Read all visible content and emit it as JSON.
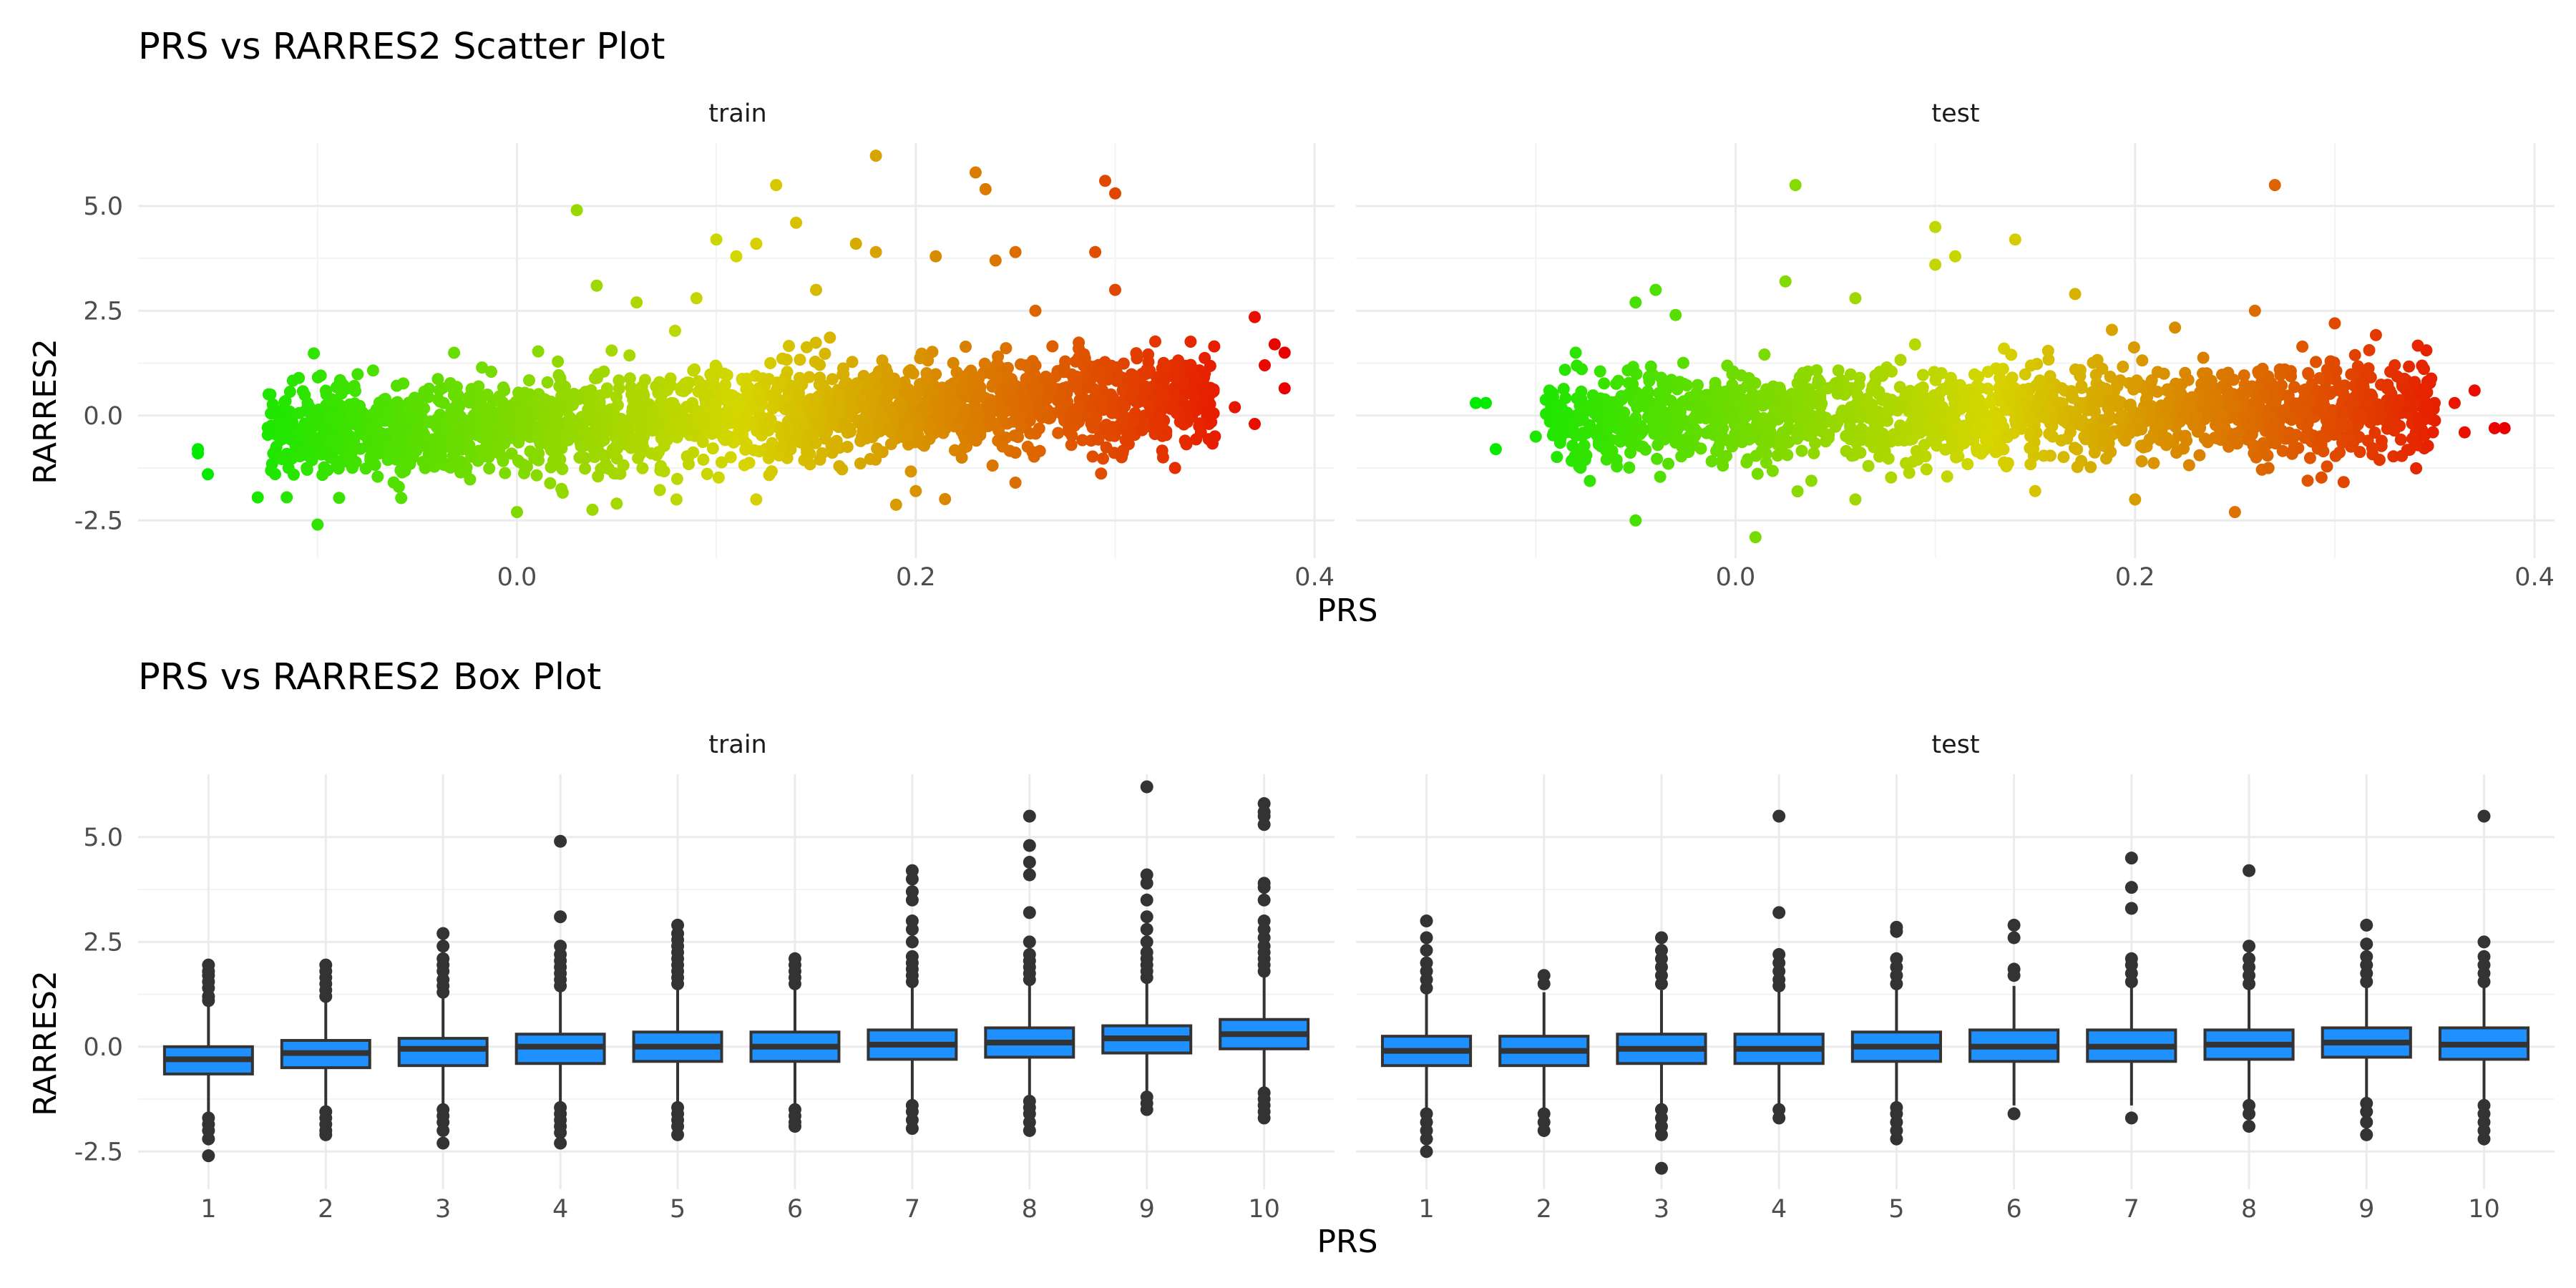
{
  "chart_data": [
    {
      "type": "scatter",
      "title": "PRS vs RARRES2 Scatter Plot",
      "xlabel": "PRS",
      "ylabel": "RARRES2",
      "xlim": [
        -0.19,
        0.41
      ],
      "ylim": [
        -3.4,
        6.5
      ],
      "x_ticks": [
        "0.0",
        "0.2",
        "0.4"
      ],
      "y_ticks": [
        "-2.5",
        "0.0",
        "2.5",
        "5.0"
      ],
      "color_gradient": [
        "#00ff00",
        "#ff0000"
      ],
      "grid": true,
      "panels": [
        {
          "label": "train",
          "x_range": [
            -0.16,
            0.385
          ],
          "cloud": {
            "mean_slope": 2.0,
            "spread": 0.55,
            "n": 2200
          },
          "points": [
            [
              -0.16,
              -0.9
            ],
            [
              -0.16,
              -0.8
            ],
            [
              -0.155,
              -1.4
            ],
            [
              -0.13,
              -1.95
            ],
            [
              -0.1,
              -2.6
            ],
            [
              0.03,
              4.9
            ],
            [
              0.04,
              3.1
            ],
            [
              0.06,
              2.7
            ],
            [
              0.09,
              2.8
            ],
            [
              0.1,
              4.2
            ],
            [
              0.11,
              3.8
            ],
            [
              0.12,
              4.1
            ],
            [
              0.13,
              5.5
            ],
            [
              0.14,
              4.6
            ],
            [
              0.15,
              3.0
            ],
            [
              0.17,
              4.1
            ],
            [
              0.18,
              6.2
            ],
            [
              0.18,
              3.9
            ],
            [
              0.21,
              3.8
            ],
            [
              0.23,
              5.8
            ],
            [
              0.235,
              5.4
            ],
            [
              0.24,
              3.7
            ],
            [
              0.25,
              3.9
            ],
            [
              0.26,
              2.5
            ],
            [
              0.29,
              3.9
            ],
            [
              0.295,
              5.6
            ],
            [
              0.3,
              3.0
            ],
            [
              0.3,
              5.3
            ],
            [
              0.37,
              2.35
            ],
            [
              0.38,
              1.7
            ],
            [
              0.385,
              1.5
            ],
            [
              0.375,
              1.2
            ],
            [
              0.385,
              0.65
            ],
            [
              0.36,
              0.2
            ],
            [
              0.37,
              -0.2
            ],
            [
              0.33,
              -1.25
            ],
            [
              0.0,
              -2.3
            ],
            [
              0.05,
              -2.1
            ],
            [
              0.08,
              -2.0
            ],
            [
              0.12,
              -2.0
            ],
            [
              0.2,
              -1.8
            ],
            [
              0.25,
              -1.6
            ]
          ]
        },
        {
          "label": "test",
          "x_range": [
            -0.13,
            0.385
          ],
          "cloud": {
            "mean_slope": 0.6,
            "spread": 0.55,
            "n": 1700
          },
          "points": [
            [
              -0.13,
              0.3
            ],
            [
              -0.125,
              0.3
            ],
            [
              -0.12,
              -0.8
            ],
            [
              -0.1,
              -0.5
            ],
            [
              -0.08,
              1.5
            ],
            [
              -0.05,
              2.7
            ],
            [
              -0.04,
              3.0
            ],
            [
              -0.03,
              2.4
            ],
            [
              -0.05,
              -2.5
            ],
            [
              0.03,
              5.5
            ],
            [
              0.025,
              3.2
            ],
            [
              0.01,
              -2.9
            ],
            [
              0.06,
              2.8
            ],
            [
              0.1,
              4.5
            ],
            [
              0.1,
              3.6
            ],
            [
              0.11,
              3.8
            ],
            [
              0.14,
              4.2
            ],
            [
              0.17,
              2.9
            ],
            [
              0.22,
              2.1
            ],
            [
              0.26,
              2.5
            ],
            [
              0.27,
              5.5
            ],
            [
              0.3,
              2.2
            ],
            [
              0.33,
              1.2
            ],
            [
              0.34,
              0.8
            ],
            [
              0.35,
              0.3
            ],
            [
              0.36,
              0.3
            ],
            [
              0.37,
              0.6
            ],
            [
              0.385,
              -0.3
            ],
            [
              0.365,
              -0.4
            ],
            [
              0.38,
              -0.3
            ],
            [
              0.25,
              -2.3
            ],
            [
              0.2,
              -2.0
            ],
            [
              0.15,
              -1.8
            ],
            [
              0.06,
              -2.0
            ]
          ]
        }
      ]
    },
    {
      "type": "box",
      "title": "PRS vs RARRES2 Box Plot",
      "xlabel": "PRS",
      "ylabel": "RARRES2",
      "ylim": [
        -3.4,
        6.5
      ],
      "categories": [
        "1",
        "2",
        "3",
        "4",
        "5",
        "6",
        "7",
        "8",
        "9",
        "10"
      ],
      "y_ticks": [
        "-2.5",
        "0.0",
        "2.5",
        "5.0"
      ],
      "box_color": "#1e90ff",
      "grid": true,
      "panels": [
        {
          "label": "train",
          "boxes": [
            {
              "q1": -0.65,
              "median": -0.3,
              "q3": 0.0,
              "whisker_low": -1.65,
              "whisker_high": 1.0,
              "outliers": [
                1.1,
                1.2,
                1.4,
                1.55,
                1.7,
                1.8,
                1.95,
                -1.7,
                -1.85,
                -2.0,
                -2.2,
                -2.6
              ]
            },
            {
              "q1": -0.5,
              "median": -0.15,
              "q3": 0.15,
              "whisker_low": -1.5,
              "whisker_high": 1.1,
              "outliers": [
                1.2,
                1.35,
                1.5,
                1.65,
                1.8,
                1.95,
                -1.55,
                -1.7,
                -1.85,
                -2.0,
                -2.1
              ]
            },
            {
              "q1": -0.45,
              "median": -0.05,
              "q3": 0.2,
              "whisker_low": -1.45,
              "whisker_high": 1.2,
              "outliers": [
                1.3,
                1.45,
                1.6,
                1.8,
                1.95,
                2.1,
                2.4,
                2.7,
                -1.5,
                -1.65,
                -1.8,
                -2.0,
                -2.3
              ]
            },
            {
              "q1": -0.4,
              "median": 0.0,
              "q3": 0.3,
              "whisker_low": -1.4,
              "whisker_high": 1.35,
              "outliers": [
                1.45,
                1.6,
                1.75,
                1.9,
                2.05,
                2.2,
                2.4,
                3.1,
                4.9,
                -1.45,
                -1.6,
                -1.75,
                -1.9,
                -2.05,
                -2.3
              ]
            },
            {
              "q1": -0.35,
              "median": 0.0,
              "q3": 0.35,
              "whisker_low": -1.4,
              "whisker_high": 1.4,
              "outliers": [
                1.5,
                1.65,
                1.8,
                1.95,
                2.1,
                2.25,
                2.4,
                2.55,
                2.7,
                2.9,
                -1.45,
                -1.6,
                -1.75,
                -1.9,
                -2.1
              ]
            },
            {
              "q1": -0.35,
              "median": 0.0,
              "q3": 0.35,
              "whisker_low": -1.4,
              "whisker_high": 1.4,
              "outliers": [
                1.5,
                1.65,
                1.8,
                1.95,
                2.1,
                -1.5,
                -1.65,
                -1.8,
                -1.9
              ]
            },
            {
              "q1": -0.3,
              "median": 0.05,
              "q3": 0.4,
              "whisker_low": -1.3,
              "whisker_high": 1.45,
              "outliers": [
                1.55,
                1.7,
                1.85,
                2.0,
                2.15,
                2.5,
                2.8,
                3.0,
                3.5,
                3.7,
                4.0,
                4.2,
                -1.4,
                -1.55,
                -1.75,
                -1.95
              ]
            },
            {
              "q1": -0.25,
              "median": 0.1,
              "q3": 0.45,
              "whisker_low": -1.25,
              "whisker_high": 1.5,
              "outliers": [
                1.6,
                1.75,
                1.9,
                2.05,
                2.2,
                2.5,
                3.2,
                4.1,
                4.4,
                4.8,
                5.5,
                -1.3,
                -1.45,
                -1.6,
                -1.8,
                -2.0
              ]
            },
            {
              "q1": -0.15,
              "median": 0.2,
              "q3": 0.5,
              "whisker_low": -1.15,
              "whisker_high": 1.55,
              "outliers": [
                1.65,
                1.8,
                1.95,
                2.1,
                2.25,
                2.5,
                2.8,
                3.1,
                3.5,
                3.9,
                4.1,
                6.2,
                -1.2,
                -1.35,
                -1.5
              ]
            },
            {
              "q1": -0.05,
              "median": 0.3,
              "q3": 0.65,
              "whisker_low": -1.05,
              "whisker_high": 1.7,
              "outliers": [
                1.8,
                1.95,
                2.1,
                2.25,
                2.4,
                2.6,
                2.8,
                3.0,
                3.5,
                3.8,
                3.9,
                5.3,
                5.5,
                5.6,
                5.8,
                -1.1,
                -1.25,
                -1.4,
                -1.55,
                -1.7
              ]
            }
          ]
        },
        {
          "label": "test",
          "boxes": [
            {
              "q1": -0.45,
              "median": -0.1,
              "q3": 0.25,
              "whisker_low": -1.5,
              "whisker_high": 1.3,
              "outliers": [
                1.4,
                1.6,
                1.8,
                2.0,
                2.3,
                2.6,
                3.0,
                -1.6,
                -1.8,
                -2.0,
                -2.2,
                -2.5
              ]
            },
            {
              "q1": -0.45,
              "median": -0.1,
              "q3": 0.25,
              "whisker_low": -1.5,
              "whisker_high": 1.3,
              "outliers": [
                1.5,
                1.7,
                -1.6,
                -1.8,
                -2.0
              ]
            },
            {
              "q1": -0.4,
              "median": -0.05,
              "q3": 0.3,
              "whisker_low": -1.45,
              "whisker_high": 1.35,
              "outliers": [
                1.5,
                1.7,
                1.9,
                2.1,
                2.3,
                2.6,
                -1.5,
                -1.7,
                -1.9,
                -2.1,
                -2.9
              ]
            },
            {
              "q1": -0.4,
              "median": -0.05,
              "q3": 0.3,
              "whisker_low": -1.45,
              "whisker_high": 1.35,
              "outliers": [
                1.45,
                1.6,
                1.8,
                2.0,
                2.2,
                3.2,
                5.5,
                -1.5,
                -1.7
              ]
            },
            {
              "q1": -0.35,
              "median": 0.0,
              "q3": 0.35,
              "whisker_low": -1.4,
              "whisker_high": 1.4,
              "outliers": [
                1.5,
                1.7,
                1.9,
                2.1,
                2.75,
                2.85,
                -1.45,
                -1.6,
                -1.8,
                -2.0,
                -2.2
              ]
            },
            {
              "q1": -0.35,
              "median": 0.0,
              "q3": 0.4,
              "whisker_low": -1.4,
              "whisker_high": 1.45,
              "outliers": [
                1.7,
                1.85,
                2.6,
                2.9,
                -1.6
              ]
            },
            {
              "q1": -0.35,
              "median": 0.0,
              "q3": 0.4,
              "whisker_low": -1.4,
              "whisker_high": 1.45,
              "outliers": [
                1.55,
                1.75,
                1.95,
                2.1,
                3.3,
                3.8,
                4.5,
                -1.7
              ]
            },
            {
              "q1": -0.3,
              "median": 0.05,
              "q3": 0.4,
              "whisker_low": -1.35,
              "whisker_high": 1.4,
              "outliers": [
                1.5,
                1.7,
                1.9,
                2.1,
                2.4,
                4.2,
                -1.4,
                -1.6,
                -1.9
              ]
            },
            {
              "q1": -0.25,
              "median": 0.1,
              "q3": 0.45,
              "whisker_low": -1.3,
              "whisker_high": 1.45,
              "outliers": [
                1.55,
                1.75,
                1.95,
                2.15,
                2.45,
                2.9,
                -1.35,
                -1.55,
                -1.8,
                -2.1
              ]
            },
            {
              "q1": -0.3,
              "median": 0.05,
              "q3": 0.45,
              "whisker_low": -1.35,
              "whisker_high": 1.45,
              "outliers": [
                1.55,
                1.75,
                1.95,
                2.15,
                2.5,
                5.5,
                -1.4,
                -1.6,
                -1.8,
                -2.0,
                -2.2
              ]
            }
          ]
        }
      ]
    }
  ]
}
